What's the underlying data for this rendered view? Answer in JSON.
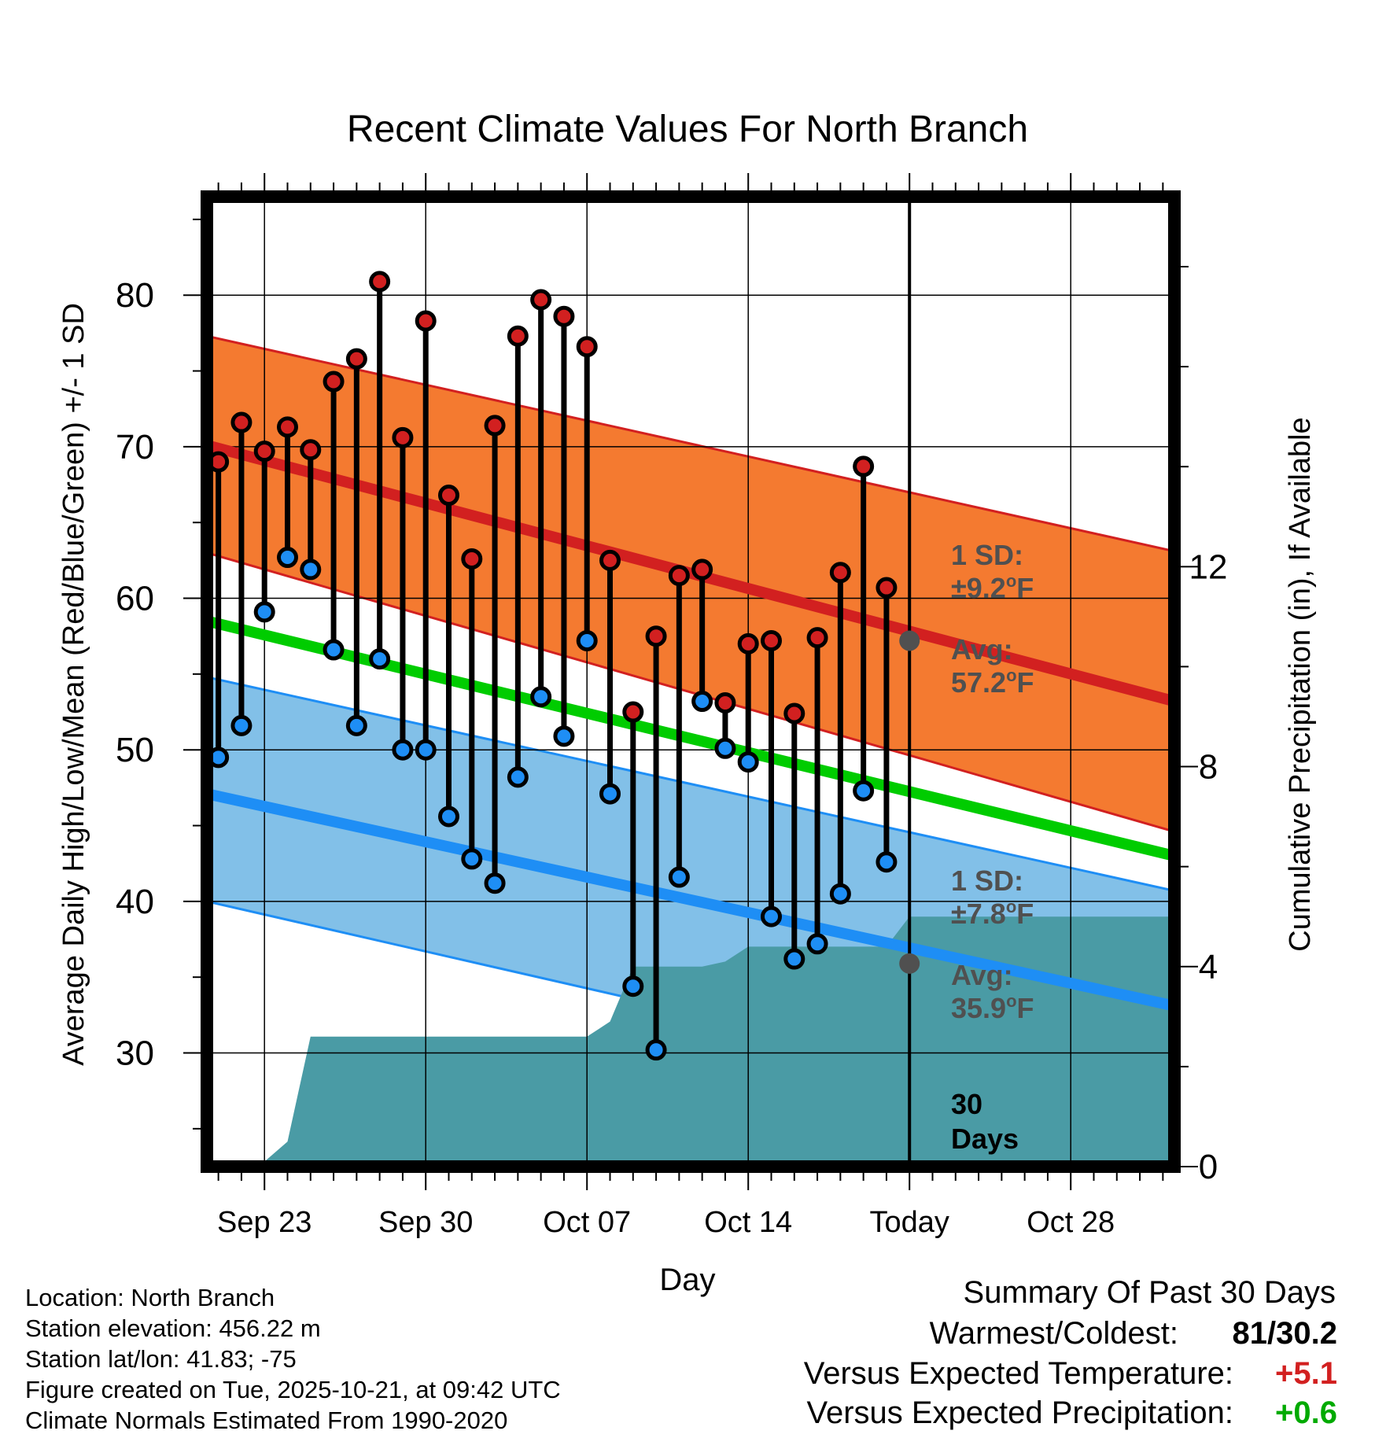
{
  "chart_data": {
    "type": "line",
    "title": "Recent Climate Values For North Branch",
    "xlabel": "Day",
    "ylabel": "Average Daily High/Low/Mean (Red/Blue/Green) +/- 1 SD",
    "y2label": "Cumulative Precipitation (in), If Available",
    "xlim": [
      -0.5,
      41.5
    ],
    "ylim": [
      22.5,
      86.5
    ],
    "y2lim": [
      0,
      19.4
    ],
    "x_ticks": [
      {
        "x": 2,
        "label": "Sep 23"
      },
      {
        "x": 9,
        "label": "Sep 30"
      },
      {
        "x": 16,
        "label": "Oct 07"
      },
      {
        "x": 23,
        "label": "Oct 14"
      },
      {
        "x": 30,
        "label": "Today"
      },
      {
        "x": 37,
        "label": "Oct 28"
      }
    ],
    "y_ticks": [
      30,
      40,
      50,
      60,
      70,
      80
    ],
    "y2_ticks": [
      0,
      4,
      8,
      12
    ],
    "normals": {
      "x_range": [
        -0.5,
        41.5
      ],
      "high_avg": [
        70.1,
        53.2
      ],
      "high_upper": [
        77.3,
        63.1
      ],
      "high_lower": [
        63.0,
        44.6
      ],
      "low_avg": [
        47.1,
        33.1
      ],
      "low_upper": [
        54.8,
        40.7
      ],
      "low_lower": [
        40.0,
        25.4
      ],
      "mean_avg": [
        58.5,
        43.0
      ]
    },
    "colors": {
      "high": "#d22020",
      "high_band": "#f47a30",
      "low": "#1e8ef5",
      "low_band": "#82c0e8",
      "mean": "#00cc00",
      "precip": "#4a9ba5",
      "annotation": "#505050"
    },
    "series": [
      {
        "name": "High",
        "values": [
          69.0,
          71.6,
          69.7,
          71.3,
          69.8,
          74.3,
          75.8,
          80.9,
          70.6,
          78.3,
          66.8,
          62.6,
          71.4,
          77.3,
          79.7,
          78.6,
          76.6,
          62.5,
          52.5,
          57.5,
          61.5,
          61.9,
          53.1,
          57.0,
          57.2,
          52.4,
          57.4,
          61.7,
          68.7,
          60.7
        ]
      },
      {
        "name": "Low",
        "values": [
          49.5,
          51.6,
          59.1,
          62.7,
          61.9,
          56.6,
          51.6,
          56.0,
          50.0,
          50.0,
          45.6,
          42.8,
          41.2,
          48.2,
          53.5,
          50.9,
          57.2,
          47.1,
          34.4,
          30.2,
          41.6,
          53.2,
          50.1,
          49.2,
          39.0,
          36.2,
          37.2,
          40.5,
          47.3,
          42.6
        ]
      }
    ],
    "precip": {
      "x": [
        1,
        2,
        3,
        4,
        5,
        6,
        7,
        8,
        9,
        10,
        11,
        12,
        13,
        14,
        15,
        16,
        17,
        18,
        19,
        20,
        21,
        22,
        23,
        24,
        25,
        26,
        27,
        28,
        29,
        30,
        31,
        32,
        33,
        34,
        35,
        36,
        37,
        38,
        39,
        40,
        41,
        41.5
      ],
      "values": [
        0,
        0.1,
        0.5,
        2.6,
        2.6,
        2.6,
        2.6,
        2.6,
        2.6,
        2.6,
        2.6,
        2.6,
        2.6,
        2.6,
        2.6,
        2.6,
        2.9,
        4.0,
        4.0,
        4.0,
        4.0,
        4.1,
        4.4,
        4.4,
        4.4,
        4.4,
        4.4,
        4.4,
        4.4,
        5.0,
        5.0,
        5.0,
        5.0,
        5.0,
        5.0,
        5.0,
        5.0,
        5.0,
        5.0,
        5.0,
        5.0,
        5.0
      ]
    },
    "today_x": 30,
    "today_markers": {
      "high": 57.2,
      "low": 35.9
    },
    "annotations": {
      "high_sd_1": "1 SD:",
      "high_sd_2": "±9.2",
      "high_avg_1": "Avg:",
      "high_avg_2": "57.2",
      "low_sd_1": "1 SD:",
      "low_sd_2": "±7.8",
      "low_avg_1": "Avg:",
      "low_avg_2": "35.9",
      "deg_sup": "o",
      "unit": "F",
      "days_1": "30",
      "days_2": "Days"
    }
  },
  "footer": {
    "location": "Location: North Branch",
    "elevation": "Station elevation: 456.22 m",
    "latlon": "Station lat/lon: 41.83; -75",
    "created": "Figure created on Tue, 2025-10-21, at 09:42 UTC",
    "normals": "Climate Normals Estimated From 1990-2020"
  },
  "summary": {
    "title": "Summary Of Past 30 Days",
    "warm_cold_label": "Warmest/Coldest:",
    "warm_cold_value": "81/30.2",
    "temp_label": "Versus Expected Temperature:",
    "temp_value": "+5.1",
    "temp_color": "#d22020",
    "precip_label": "Versus Expected Precipitation:",
    "precip_value": "+0.6",
    "precip_color": "#00aa00"
  }
}
